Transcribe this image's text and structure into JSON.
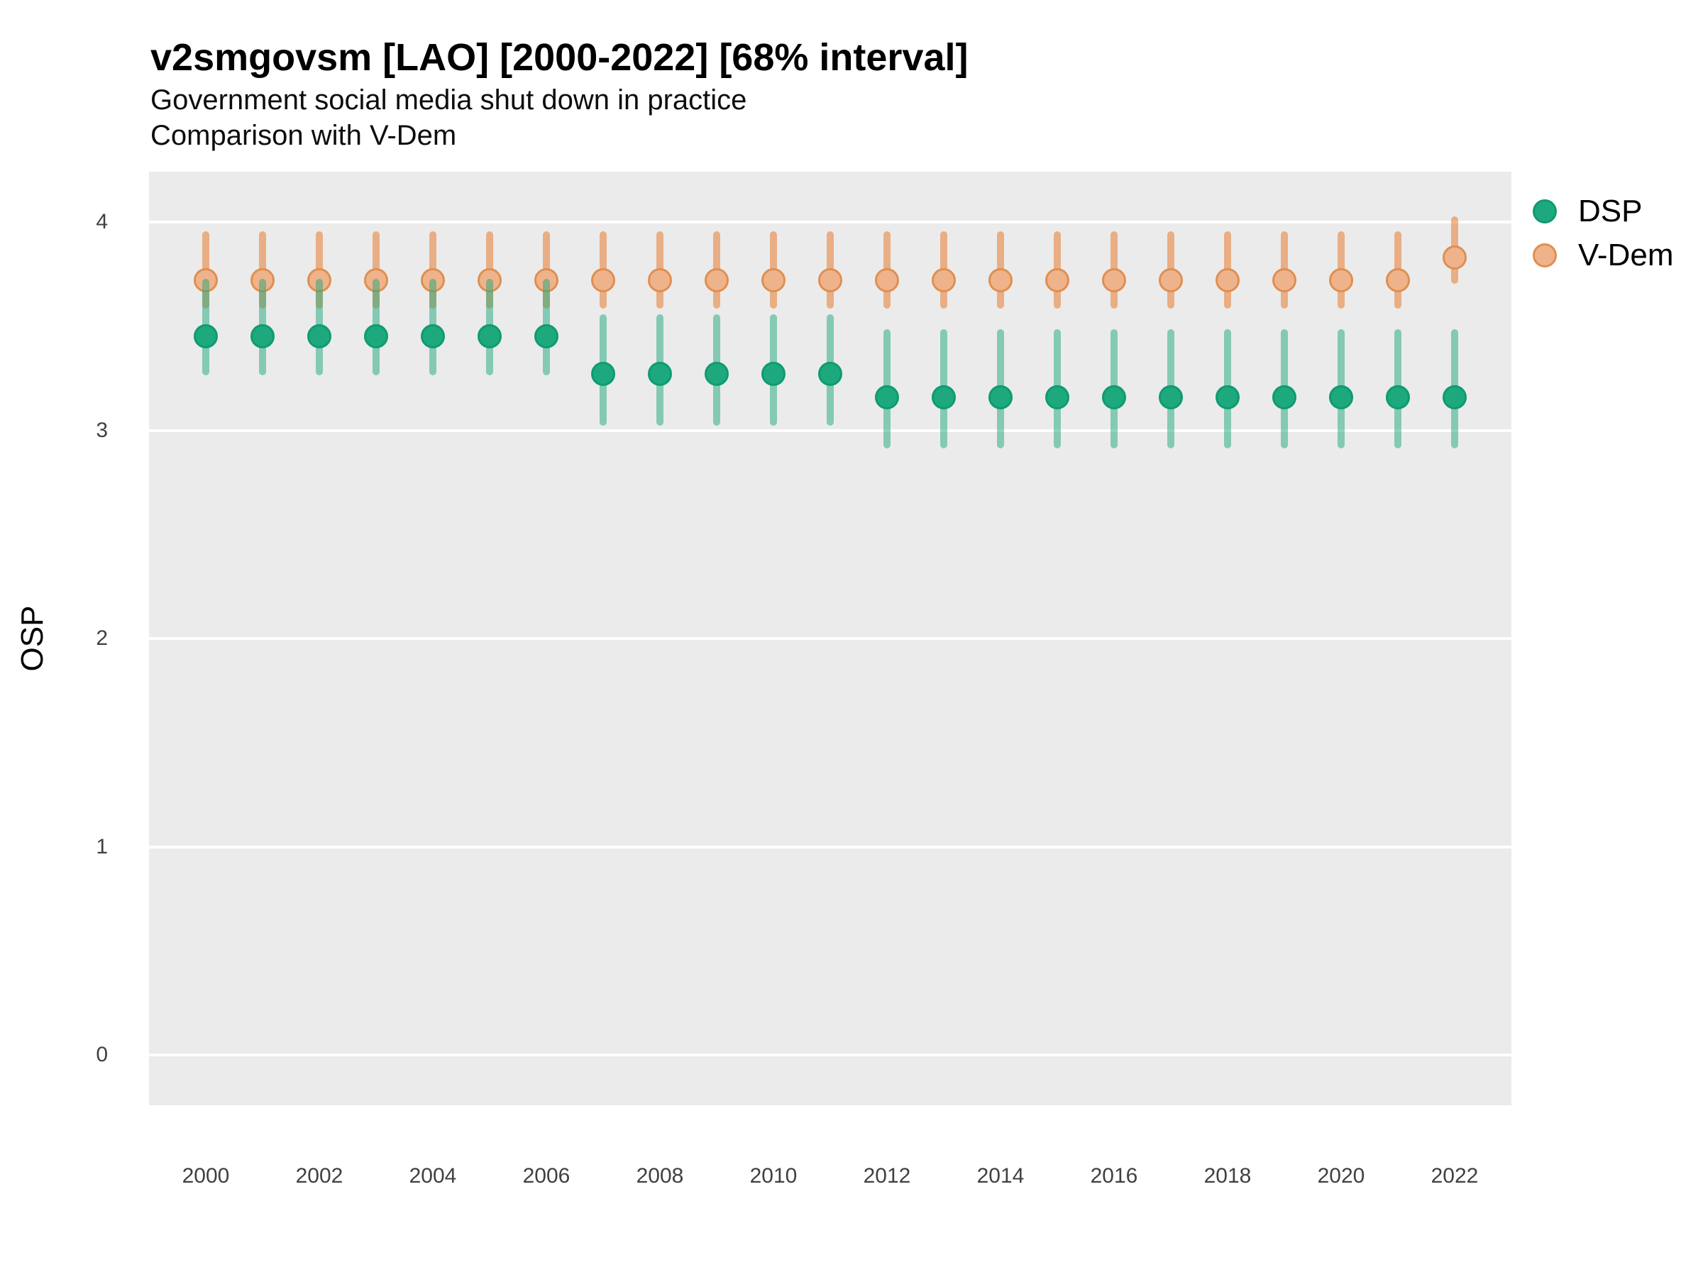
{
  "title": "v2smgovsm [LAO] [2000-2022] [68% interval]",
  "subtitle": "Government social media shut down in practice",
  "subtitle2": "Comparison with V-Dem",
  "y_axis_label": "OSP",
  "legend": {
    "position": "right",
    "items": [
      {
        "label": "DSP",
        "fill": "#1EA87D",
        "stroke": "#0E9B70"
      },
      {
        "label": "V-Dem",
        "fill": "#EFB38B",
        "stroke": "#DF8F51"
      }
    ]
  },
  "colors": {
    "panel_background": "#ebebeb",
    "gridline": "#ffffff",
    "dsp_point_fill": "#1EA87D",
    "dsp_point_stroke": "#0E9B70",
    "dsp_interval": "rgba(30,167,124,0.5)",
    "vdem_point_fill": "#EFB38B",
    "vdem_point_stroke": "#DF8F51",
    "vdem_interval": "rgba(231,124,47,0.55)",
    "tick_label": "#404040"
  },
  "chart_data": {
    "type": "pointrange",
    "title": "v2smgovsm [LAO] [2000-2022] [68% interval]",
    "subtitle": "Government social media shut down in practice",
    "comparison_note": "Comparison with V-Dem",
    "interval": "68%",
    "xlabel": "",
    "ylabel": "OSP",
    "ylim": [
      -0.24,
      4.24
    ],
    "y_ticks": [
      4,
      3,
      2,
      1,
      0
    ],
    "x": [
      2000,
      2001,
      2002,
      2003,
      2004,
      2005,
      2006,
      2007,
      2008,
      2009,
      2010,
      2011,
      2012,
      2013,
      2014,
      2015,
      2016,
      2017,
      2018,
      2019,
      2020,
      2021,
      2022
    ],
    "x_tick_labels": [
      "2000",
      "2002",
      "2004",
      "2006",
      "2008",
      "2010",
      "2012",
      "2014",
      "2016",
      "2018",
      "2020",
      "2022"
    ],
    "grid": "horizontal major only",
    "legend_position": "right",
    "series": [
      {
        "name": "DSP",
        "est": [
          3.45,
          3.45,
          3.45,
          3.45,
          3.45,
          3.45,
          3.45,
          3.27,
          3.27,
          3.27,
          3.27,
          3.27,
          3.16,
          3.16,
          3.16,
          3.16,
          3.16,
          3.16,
          3.16,
          3.16,
          3.16,
          3.16,
          3.16
        ],
        "lo": [
          3.28,
          3.28,
          3.28,
          3.28,
          3.28,
          3.28,
          3.28,
          3.04,
          3.04,
          3.04,
          3.04,
          3.04,
          2.93,
          2.93,
          2.93,
          2.93,
          2.93,
          2.93,
          2.93,
          2.93,
          2.93,
          2.93,
          2.93
        ],
        "hi": [
          3.71,
          3.71,
          3.71,
          3.71,
          3.71,
          3.71,
          3.71,
          3.54,
          3.54,
          3.54,
          3.54,
          3.54,
          3.47,
          3.47,
          3.47,
          3.47,
          3.47,
          3.47,
          3.47,
          3.47,
          3.47,
          3.47,
          3.47
        ]
      },
      {
        "name": "V-Dem",
        "est": [
          3.72,
          3.72,
          3.72,
          3.72,
          3.72,
          3.72,
          3.72,
          3.72,
          3.72,
          3.72,
          3.72,
          3.72,
          3.72,
          3.72,
          3.72,
          3.72,
          3.72,
          3.72,
          3.72,
          3.72,
          3.72,
          3.72,
          3.83
        ],
        "lo": [
          3.6,
          3.6,
          3.6,
          3.6,
          3.6,
          3.6,
          3.6,
          3.6,
          3.6,
          3.6,
          3.6,
          3.6,
          3.6,
          3.6,
          3.6,
          3.6,
          3.6,
          3.6,
          3.6,
          3.6,
          3.6,
          3.6,
          3.72
        ],
        "hi": [
          3.94,
          3.94,
          3.94,
          3.94,
          3.94,
          3.94,
          3.94,
          3.94,
          3.94,
          3.94,
          3.94,
          3.94,
          3.94,
          3.94,
          3.94,
          3.94,
          3.94,
          3.94,
          3.94,
          3.94,
          3.94,
          3.94,
          4.01
        ]
      }
    ]
  }
}
